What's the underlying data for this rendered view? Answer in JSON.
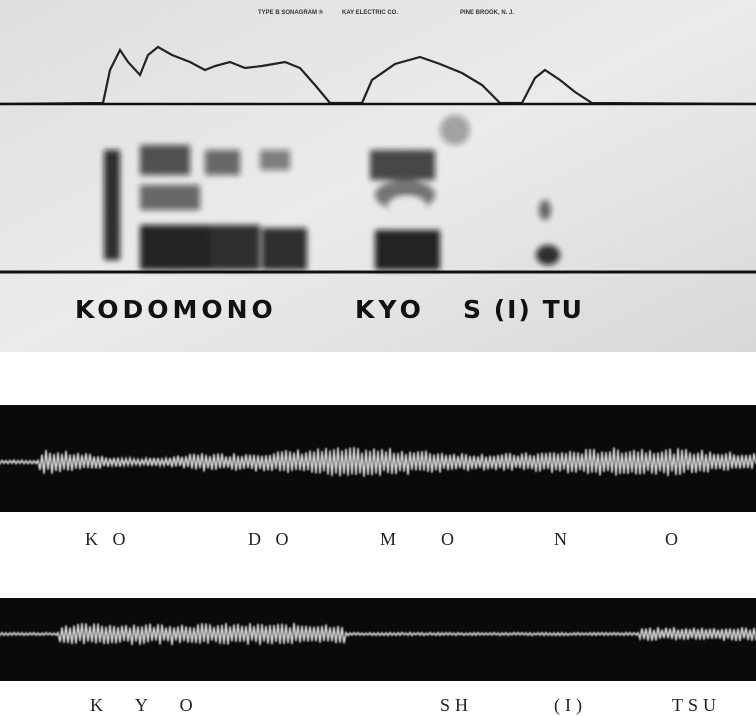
{
  "sonagram": {
    "header": [
      "TYPE B SONAGRAM ®",
      "KAY ELECTRIC CO.",
      "PINE BROOK, N. J."
    ],
    "labels": [
      "KODOMONO",
      "KYO",
      "S (I) TU"
    ]
  },
  "waveform_1": {
    "labels": [
      "K O",
      "D O",
      "M",
      "O",
      "N",
      "O"
    ]
  },
  "waveform_2": {
    "labels": [
      "K Y O",
      "SH",
      "(I)",
      "TSU"
    ]
  }
}
